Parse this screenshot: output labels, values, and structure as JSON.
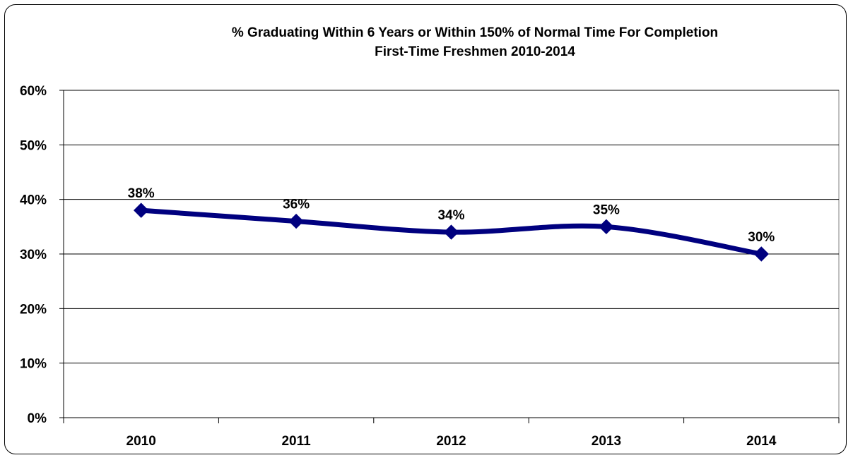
{
  "chart_data": {
    "type": "line",
    "title": "% Graduating Within 6 Years or Within 150% of Normal Time For Completion",
    "subtitle": "First-Time Freshmen 2010-2014",
    "xlabel": "",
    "ylabel": "",
    "categories": [
      "2010",
      "2011",
      "2012",
      "2013",
      "2014"
    ],
    "series": [
      {
        "values": [
          38,
          36,
          34,
          35,
          30
        ],
        "data_labels": [
          "38%",
          "36%",
          "34%",
          "35%",
          "30%"
        ],
        "color": "#00007F",
        "marker": "diamond",
        "smooth": true
      }
    ],
    "ylim": [
      0,
      60
    ],
    "y_ticks": [
      0,
      10,
      20,
      30,
      40,
      50,
      60
    ],
    "y_tick_labels": [
      "0%",
      "10%",
      "20%",
      "30%",
      "40%",
      "50%",
      "60%"
    ],
    "grid": true,
    "legend": "none"
  }
}
